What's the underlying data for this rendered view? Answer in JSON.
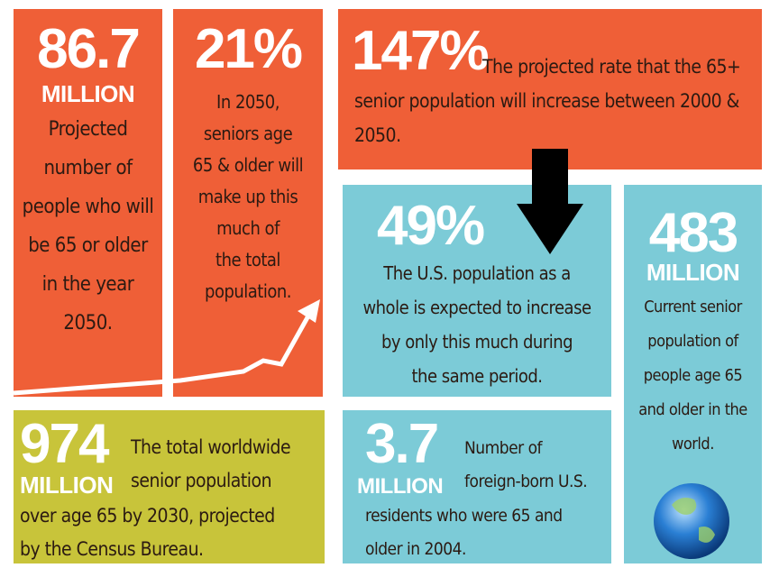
{
  "tiles": [
    {
      "number": "86.7",
      "unit": "MILLION",
      "lines": [
        "Projected",
        "number of",
        "people who will",
        "be 65 or older",
        "in the year",
        "2050."
      ]
    },
    {
      "number": "21%",
      "lines": [
        "In 2050,",
        "seniors age",
        "65 & older will",
        "make up this",
        "much of",
        "the total",
        "population."
      ]
    },
    {
      "number": "147%",
      "lines": [
        "The projected rate that the 65+",
        "senior population will increase between 2000 &",
        "2050."
      ]
    },
    {
      "number": "49%",
      "lines": [
        "The U.S. population as a",
        "whole is expected to increase",
        "by only this much during",
        "the same period."
      ]
    },
    {
      "number": "483",
      "unit": "MILLION",
      "lines": [
        "Current senior",
        "population of",
        "people age 65",
        "and older in the",
        "world."
      ]
    },
    {
      "number": "974",
      "unit": "MILLION",
      "lines": [
        "The total worldwide",
        "senior population",
        "over age 65 by 2030, projected",
        "by the Census Bureau."
      ]
    },
    {
      "number": "3.7",
      "unit": "MILLION",
      "lines": [
        "Number of",
        "foreign-born U.S.",
        "residents who were 65 and",
        "older in 2004."
      ]
    }
  ]
}
